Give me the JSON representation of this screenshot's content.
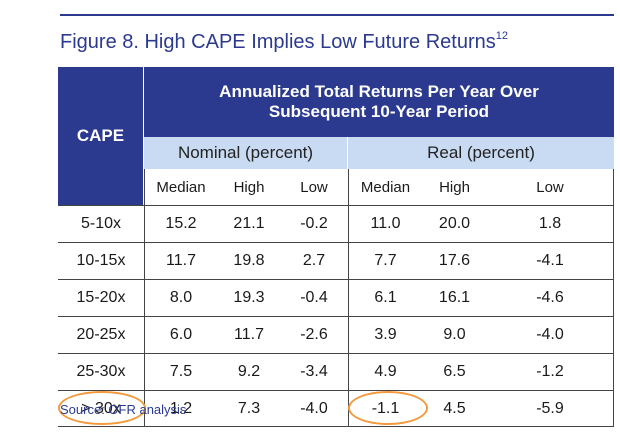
{
  "title": {
    "text": "Figure 8. High CAPE Implies Low Future Returns",
    "superscript": "12"
  },
  "table": {
    "cape_header": "CAPE",
    "main_header_line1": "Annualized Total Returns Per Year Over",
    "main_header_line2": "Subsequent 10-Year Period",
    "group_nominal": "Nominal (percent)",
    "group_real": "Real (percent)",
    "columns": [
      "Median",
      "High",
      "Low",
      "Median",
      "High",
      "Low"
    ],
    "rows": [
      {
        "cape": "5-10x",
        "values": [
          "15.2",
          "21.1",
          "-0.2",
          "11.0",
          "20.0",
          "1.8"
        ]
      },
      {
        "cape": "10-15x",
        "values": [
          "11.7",
          "19.8",
          "2.7",
          "7.7",
          "17.6",
          "-4.1"
        ]
      },
      {
        "cape": "15-20x",
        "values": [
          "8.0",
          "19.3",
          "-0.4",
          "6.1",
          "16.1",
          "-4.6"
        ]
      },
      {
        "cape": "20-25x",
        "values": [
          "6.0",
          "11.7",
          "-2.6",
          "3.9",
          "9.0",
          "-4.0"
        ]
      },
      {
        "cape": "25-30x",
        "values": [
          "7.5",
          "9.2",
          "-3.4",
          "4.9",
          "6.5",
          "-1.2"
        ]
      },
      {
        "cape": "> 30x",
        "values": [
          "1.2",
          "7.3",
          "-4.0",
          "-1.1",
          "4.5",
          "-5.9"
        ]
      }
    ]
  },
  "colors": {
    "navy": "#2b3a8f",
    "light_blue": "#c9dbf2",
    "highlight": "#f39a3d"
  },
  "source": "Source: OFR analysis"
}
